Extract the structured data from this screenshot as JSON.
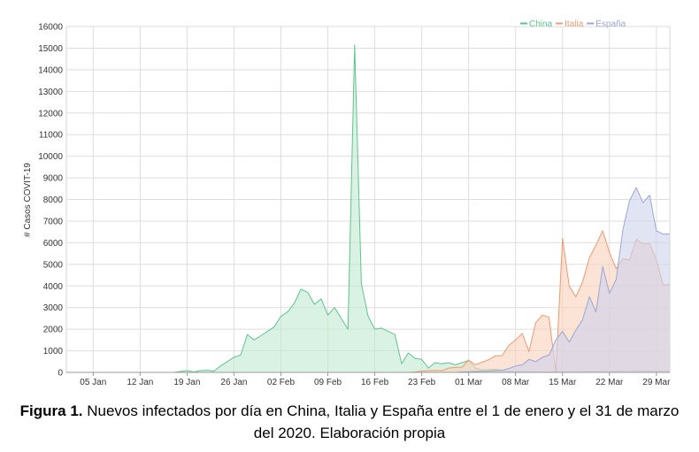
{
  "chart_data": {
    "type": "area",
    "ylabel": "# Casos COVIT-19",
    "xlabel": "",
    "ylim": [
      0,
      16000
    ],
    "yticks": [
      0,
      1000,
      2000,
      3000,
      4000,
      5000,
      6000,
      7000,
      8000,
      9000,
      10000,
      11000,
      12000,
      13000,
      14000,
      15000,
      16000
    ],
    "x_start": "2020-01-01",
    "x_end": "2020-03-31",
    "xtick_labels": [
      "05 Jan",
      "12 Jan",
      "19 Jan",
      "26 Jan",
      "02 Feb",
      "09 Feb",
      "16 Feb",
      "23 Feb",
      "01 Mar",
      "08 Mar",
      "15 Mar",
      "22 Mar",
      "29 Mar"
    ],
    "xtick_dates": [
      "2020-01-05",
      "2020-01-12",
      "2020-01-19",
      "2020-01-26",
      "2020-02-02",
      "2020-02-09",
      "2020-02-16",
      "2020-02-23",
      "2020-03-01",
      "2020-03-08",
      "2020-03-15",
      "2020-03-22",
      "2020-03-29"
    ],
    "grid": true,
    "legend_position": "top-right",
    "series": [
      {
        "name": "China",
        "color": "#5ec48f",
        "fill": "#c4ead2",
        "points": [
          [
            "2020-01-01",
            0
          ],
          [
            "2020-01-14",
            0
          ],
          [
            "2020-01-17",
            0
          ],
          [
            "2020-01-19",
            80
          ],
          [
            "2020-01-20",
            20
          ],
          [
            "2020-01-21",
            80
          ],
          [
            "2020-01-22",
            100
          ],
          [
            "2020-01-23",
            60
          ],
          [
            "2020-01-24",
            300
          ],
          [
            "2020-01-25",
            500
          ],
          [
            "2020-01-26",
            700
          ],
          [
            "2020-01-27",
            800
          ],
          [
            "2020-01-28",
            1750
          ],
          [
            "2020-01-29",
            1500
          ],
          [
            "2020-01-30",
            1700
          ],
          [
            "2020-01-31",
            1900
          ],
          [
            "2020-02-01",
            2100
          ],
          [
            "2020-02-02",
            2600
          ],
          [
            "2020-02-03",
            2800
          ],
          [
            "2020-02-04",
            3200
          ],
          [
            "2020-02-05",
            3850
          ],
          [
            "2020-02-06",
            3700
          ],
          [
            "2020-02-07",
            3150
          ],
          [
            "2020-02-08",
            3400
          ],
          [
            "2020-02-09",
            2650
          ],
          [
            "2020-02-10",
            3000
          ],
          [
            "2020-02-11",
            2500
          ],
          [
            "2020-02-12",
            2000
          ],
          [
            "2020-02-13",
            15150
          ],
          [
            "2020-02-14",
            4100
          ],
          [
            "2020-02-15",
            2600
          ],
          [
            "2020-02-16",
            2000
          ],
          [
            "2020-02-17",
            2050
          ],
          [
            "2020-02-18",
            1900
          ],
          [
            "2020-02-19",
            1750
          ],
          [
            "2020-02-20",
            400
          ],
          [
            "2020-02-21",
            900
          ],
          [
            "2020-02-22",
            650
          ],
          [
            "2020-02-23",
            600
          ],
          [
            "2020-02-24",
            200
          ],
          [
            "2020-02-25",
            450
          ],
          [
            "2020-02-26",
            400
          ],
          [
            "2020-02-27",
            450
          ],
          [
            "2020-02-28",
            350
          ],
          [
            "2020-02-29",
            450
          ],
          [
            "2020-03-01",
            550
          ],
          [
            "2020-03-02",
            200
          ],
          [
            "2020-03-03",
            120
          ],
          [
            "2020-03-04",
            130
          ],
          [
            "2020-03-05",
            140
          ],
          [
            "2020-03-06",
            100
          ],
          [
            "2020-03-07",
            40
          ],
          [
            "2020-03-08",
            40
          ],
          [
            "2020-03-12",
            20
          ],
          [
            "2020-03-20",
            40
          ],
          [
            "2020-03-25",
            70
          ],
          [
            "2020-03-31",
            50
          ]
        ]
      },
      {
        "name": "Italia",
        "color": "#ef9a70",
        "fill": "#f8d2bd",
        "points": [
          [
            "2020-01-01",
            0
          ],
          [
            "2020-02-21",
            0
          ],
          [
            "2020-02-22",
            20
          ],
          [
            "2020-02-23",
            60
          ],
          [
            "2020-02-24",
            80
          ],
          [
            "2020-02-25",
            90
          ],
          [
            "2020-02-26",
            80
          ],
          [
            "2020-02-27",
            200
          ],
          [
            "2020-02-28",
            230
          ],
          [
            "2020-02-29",
            240
          ],
          [
            "2020-03-01",
            570
          ],
          [
            "2020-03-02",
            350
          ],
          [
            "2020-03-03",
            470
          ],
          [
            "2020-03-04",
            590
          ],
          [
            "2020-03-05",
            770
          ],
          [
            "2020-03-06",
            780
          ],
          [
            "2020-03-07",
            1250
          ],
          [
            "2020-03-08",
            1500
          ],
          [
            "2020-03-09",
            1800
          ],
          [
            "2020-03-10",
            970
          ],
          [
            "2020-03-11",
            2300
          ],
          [
            "2020-03-12",
            2650
          ],
          [
            "2020-03-13",
            2550
          ],
          [
            "2020-03-14",
            0
          ],
          [
            "2020-03-15",
            6200
          ],
          [
            "2020-03-16",
            4000
          ],
          [
            "2020-03-17",
            3500
          ],
          [
            "2020-03-18",
            4200
          ],
          [
            "2020-03-19",
            5300
          ],
          [
            "2020-03-20",
            5900
          ],
          [
            "2020-03-21",
            6550
          ],
          [
            "2020-03-22",
            5550
          ],
          [
            "2020-03-23",
            4800
          ],
          [
            "2020-03-24",
            5250
          ],
          [
            "2020-03-25",
            5200
          ],
          [
            "2020-03-26",
            6150
          ],
          [
            "2020-03-27",
            5950
          ],
          [
            "2020-03-28",
            5950
          ],
          [
            "2020-03-29",
            5200
          ],
          [
            "2020-03-30",
            4050
          ],
          [
            "2020-03-31",
            4050
          ]
        ]
      },
      {
        "name": "España",
        "color": "#9aa6d6",
        "fill": "#cfd4ec",
        "points": [
          [
            "2020-01-01",
            0
          ],
          [
            "2020-02-28",
            0
          ],
          [
            "2020-02-29",
            20
          ],
          [
            "2020-03-01",
            30
          ],
          [
            "2020-03-02",
            40
          ],
          [
            "2020-03-03",
            50
          ],
          [
            "2020-03-04",
            60
          ],
          [
            "2020-03-05",
            80
          ],
          [
            "2020-03-06",
            100
          ],
          [
            "2020-03-07",
            180
          ],
          [
            "2020-03-08",
            300
          ],
          [
            "2020-03-09",
            350
          ],
          [
            "2020-03-10",
            600
          ],
          [
            "2020-03-11",
            500
          ],
          [
            "2020-03-12",
            700
          ],
          [
            "2020-03-13",
            800
          ],
          [
            "2020-03-14",
            1500
          ],
          [
            "2020-03-15",
            1900
          ],
          [
            "2020-03-16",
            1400
          ],
          [
            "2020-03-17",
            1950
          ],
          [
            "2020-03-18",
            2450
          ],
          [
            "2020-03-19",
            3500
          ],
          [
            "2020-03-20",
            2800
          ],
          [
            "2020-03-21",
            4900
          ],
          [
            "2020-03-22",
            3650
          ],
          [
            "2020-03-23",
            4300
          ],
          [
            "2020-03-24",
            6600
          ],
          [
            "2020-03-25",
            7950
          ],
          [
            "2020-03-26",
            8550
          ],
          [
            "2020-03-27",
            7850
          ],
          [
            "2020-03-28",
            8200
          ],
          [
            "2020-03-29",
            6550
          ],
          [
            "2020-03-30",
            6400
          ],
          [
            "2020-03-31",
            6400
          ]
        ]
      }
    ]
  },
  "caption": {
    "label": "Figura 1.",
    "text": " Nuevos infectados por día en China, Italia y España entre el 1 de enero y el 31 de marzo del 2020. Elaboración propia"
  }
}
